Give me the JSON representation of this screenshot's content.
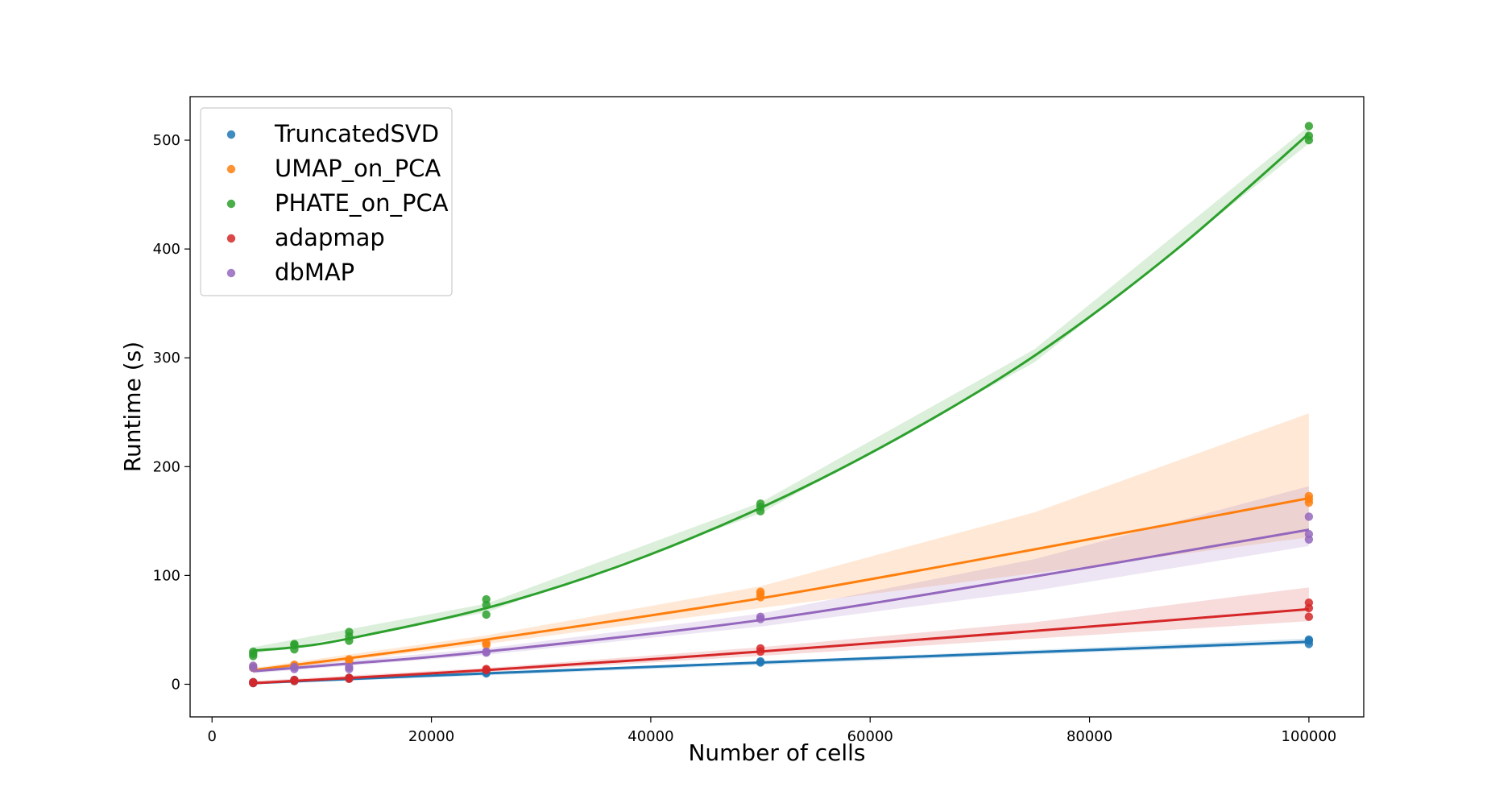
{
  "chart_data": {
    "type": "scatter",
    "xlabel": "Number of cells",
    "ylabel": "Runtime (s)",
    "xlim": [
      -2000,
      105000
    ],
    "ylim": [
      -30,
      540
    ],
    "xticks": [
      0,
      20000,
      40000,
      60000,
      80000,
      100000
    ],
    "yticks": [
      0,
      100,
      200,
      300,
      400,
      500
    ],
    "grid": false,
    "legend_position": "top-left",
    "series": [
      {
        "name": "TruncatedSVD",
        "color": "#1f77b4",
        "points": [
          [
            3750,
            1
          ],
          [
            3750,
            2
          ],
          [
            7500,
            3
          ],
          [
            7500,
            4
          ],
          [
            12500,
            5
          ],
          [
            12500,
            6
          ],
          [
            25000,
            10
          ],
          [
            25000,
            11
          ],
          [
            50000,
            20
          ],
          [
            50000,
            21
          ],
          [
            100000,
            37
          ],
          [
            100000,
            40
          ],
          [
            100000,
            41
          ]
        ],
        "fit": [
          [
            3750,
            1
          ],
          [
            25000,
            10
          ],
          [
            50000,
            20
          ],
          [
            100000,
            39
          ]
        ],
        "band": [
          [
            3750,
            0,
            2
          ],
          [
            100000,
            37,
            42
          ]
        ]
      },
      {
        "name": "UMAP_on_PCA",
        "color": "#ff7f0e",
        "points": [
          [
            3750,
            15
          ],
          [
            3750,
            16
          ],
          [
            7500,
            17
          ],
          [
            7500,
            18
          ],
          [
            12500,
            22
          ],
          [
            12500,
            23
          ],
          [
            25000,
            36
          ],
          [
            25000,
            38
          ],
          [
            50000,
            80
          ],
          [
            50000,
            83
          ],
          [
            50000,
            85
          ],
          [
            100000,
            167
          ],
          [
            100000,
            170
          ],
          [
            100000,
            173
          ]
        ],
        "fit": [
          [
            3750,
            13
          ],
          [
            12500,
            24
          ],
          [
            25000,
            41
          ],
          [
            50000,
            79
          ],
          [
            75000,
            124
          ],
          [
            100000,
            171
          ]
        ],
        "band": [
          [
            3750,
            11,
            15
          ],
          [
            25000,
            37,
            45
          ],
          [
            50000,
            70,
            90
          ],
          [
            75000,
            102,
            158
          ],
          [
            100000,
            135,
            249
          ]
        ]
      },
      {
        "name": "PHATE_on_PCA",
        "color": "#2ca02c",
        "points": [
          [
            3750,
            26
          ],
          [
            3750,
            28
          ],
          [
            3750,
            30
          ],
          [
            7500,
            32
          ],
          [
            7500,
            36
          ],
          [
            7500,
            37
          ],
          [
            12500,
            40
          ],
          [
            12500,
            44
          ],
          [
            12500,
            48
          ],
          [
            25000,
            64
          ],
          [
            25000,
            73
          ],
          [
            25000,
            78
          ],
          [
            50000,
            159
          ],
          [
            50000,
            163
          ],
          [
            50000,
            166
          ],
          [
            100000,
            500
          ],
          [
            100000,
            504
          ],
          [
            100000,
            513
          ]
        ],
        "fit": [
          [
            3750,
            31
          ],
          [
            7500,
            34
          ],
          [
            12500,
            42
          ],
          [
            25000,
            70
          ],
          [
            37500,
            110
          ],
          [
            50000,
            162
          ],
          [
            62500,
            226
          ],
          [
            75000,
            302
          ],
          [
            87500,
            396
          ],
          [
            100000,
            506
          ]
        ],
        "band": [
          [
            3750,
            28,
            34
          ],
          [
            25000,
            66,
            74
          ],
          [
            50000,
            157,
            167
          ],
          [
            75000,
            296,
            308
          ],
          [
            100000,
            497,
            513
          ]
        ]
      },
      {
        "name": "adapmap",
        "color": "#d62728",
        "points": [
          [
            3750,
            1
          ],
          [
            3750,
            2
          ],
          [
            7500,
            3
          ],
          [
            7500,
            4
          ],
          [
            12500,
            5
          ],
          [
            12500,
            6
          ],
          [
            25000,
            13
          ],
          [
            25000,
            14
          ],
          [
            50000,
            30
          ],
          [
            50000,
            33
          ],
          [
            100000,
            62
          ],
          [
            100000,
            70
          ],
          [
            100000,
            75
          ]
        ],
        "fit": [
          [
            3750,
            1
          ],
          [
            25000,
            13
          ],
          [
            50000,
            30
          ],
          [
            75000,
            49
          ],
          [
            100000,
            69
          ]
        ],
        "band": [
          [
            3750,
            0,
            3
          ],
          [
            25000,
            11,
            15
          ],
          [
            50000,
            26,
            34
          ],
          [
            75000,
            42,
            57
          ],
          [
            100000,
            58,
            89
          ]
        ]
      },
      {
        "name": "dbMAP",
        "color": "#9467bd",
        "points": [
          [
            3750,
            15
          ],
          [
            3750,
            17
          ],
          [
            7500,
            14
          ],
          [
            7500,
            16
          ],
          [
            12500,
            14
          ],
          [
            12500,
            16
          ],
          [
            25000,
            29
          ],
          [
            25000,
            30
          ],
          [
            50000,
            60
          ],
          [
            50000,
            62
          ],
          [
            100000,
            133
          ],
          [
            100000,
            138
          ],
          [
            100000,
            154
          ]
        ],
        "fit": [
          [
            3750,
            12
          ],
          [
            12500,
            19
          ],
          [
            25000,
            30
          ],
          [
            50000,
            59
          ],
          [
            75000,
            99
          ],
          [
            100000,
            142
          ]
        ],
        "band": [
          [
            3750,
            10,
            14
          ],
          [
            25000,
            27,
            33
          ],
          [
            50000,
            53,
            65
          ],
          [
            75000,
            86,
            115
          ],
          [
            100000,
            127,
            182
          ]
        ]
      }
    ]
  }
}
